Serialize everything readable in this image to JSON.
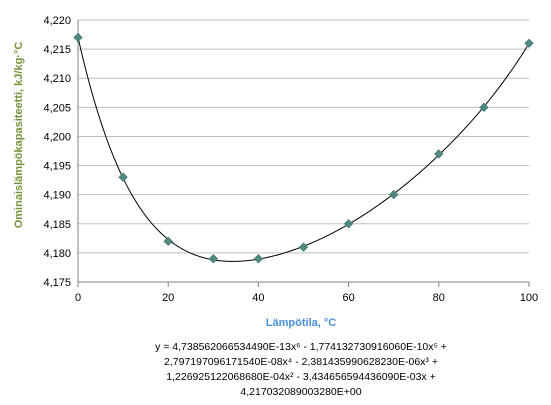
{
  "chart_data": {
    "type": "scatter",
    "xlabel": "Lämpötila, °C",
    "ylabel": "Ominaislämpökapasiteetti, kJ/kg·°C",
    "xlim": [
      0,
      100
    ],
    "ylim": [
      4.175,
      4.22
    ],
    "x_ticks": [
      "0",
      "20",
      "40",
      "60",
      "80",
      "100"
    ],
    "y_ticks": [
      "4,175",
      "4,180",
      "4,185",
      "4,190",
      "4,195",
      "4,200",
      "4,205",
      "4,210",
      "4,215",
      "4,220"
    ],
    "grid": "horizontal",
    "marker_color": "#4f8a82",
    "trendline_color": "#000000",
    "points": [
      {
        "x": 0,
        "y": 4.217
      },
      {
        "x": 10,
        "y": 4.193
      },
      {
        "x": 20,
        "y": 4.182
      },
      {
        "x": 30,
        "y": 4.179
      },
      {
        "x": 40,
        "y": 4.179
      },
      {
        "x": 50,
        "y": 4.181
      },
      {
        "x": 60,
        "y": 4.185
      },
      {
        "x": 70,
        "y": 4.19
      },
      {
        "x": 80,
        "y": 4.197
      },
      {
        "x": 90,
        "y": 4.205
      },
      {
        "x": 100,
        "y": 4.216
      }
    ],
    "trendline": {
      "type": "polynomial",
      "order": 6,
      "equation_lines": [
        "y = 4,738562066534490E-13x⁶ - 1,774132730916060E-10x⁵ +",
        "2,797197096171540E-08x⁴ - 2,381435990628230E-06x³ +",
        "1,226925122068680E-04x² - 3,434656594436090E-03x +",
        "4,217032089003280E+00"
      ],
      "coefficients": [
        4.21703208900328,
        -0.00343465659443609,
        0.000122692512206868,
        -2.38143599062823e-06,
        2.79719709617154e-08,
        -1.77413273091606e-10,
        4.73856206653449e-13
      ]
    }
  }
}
